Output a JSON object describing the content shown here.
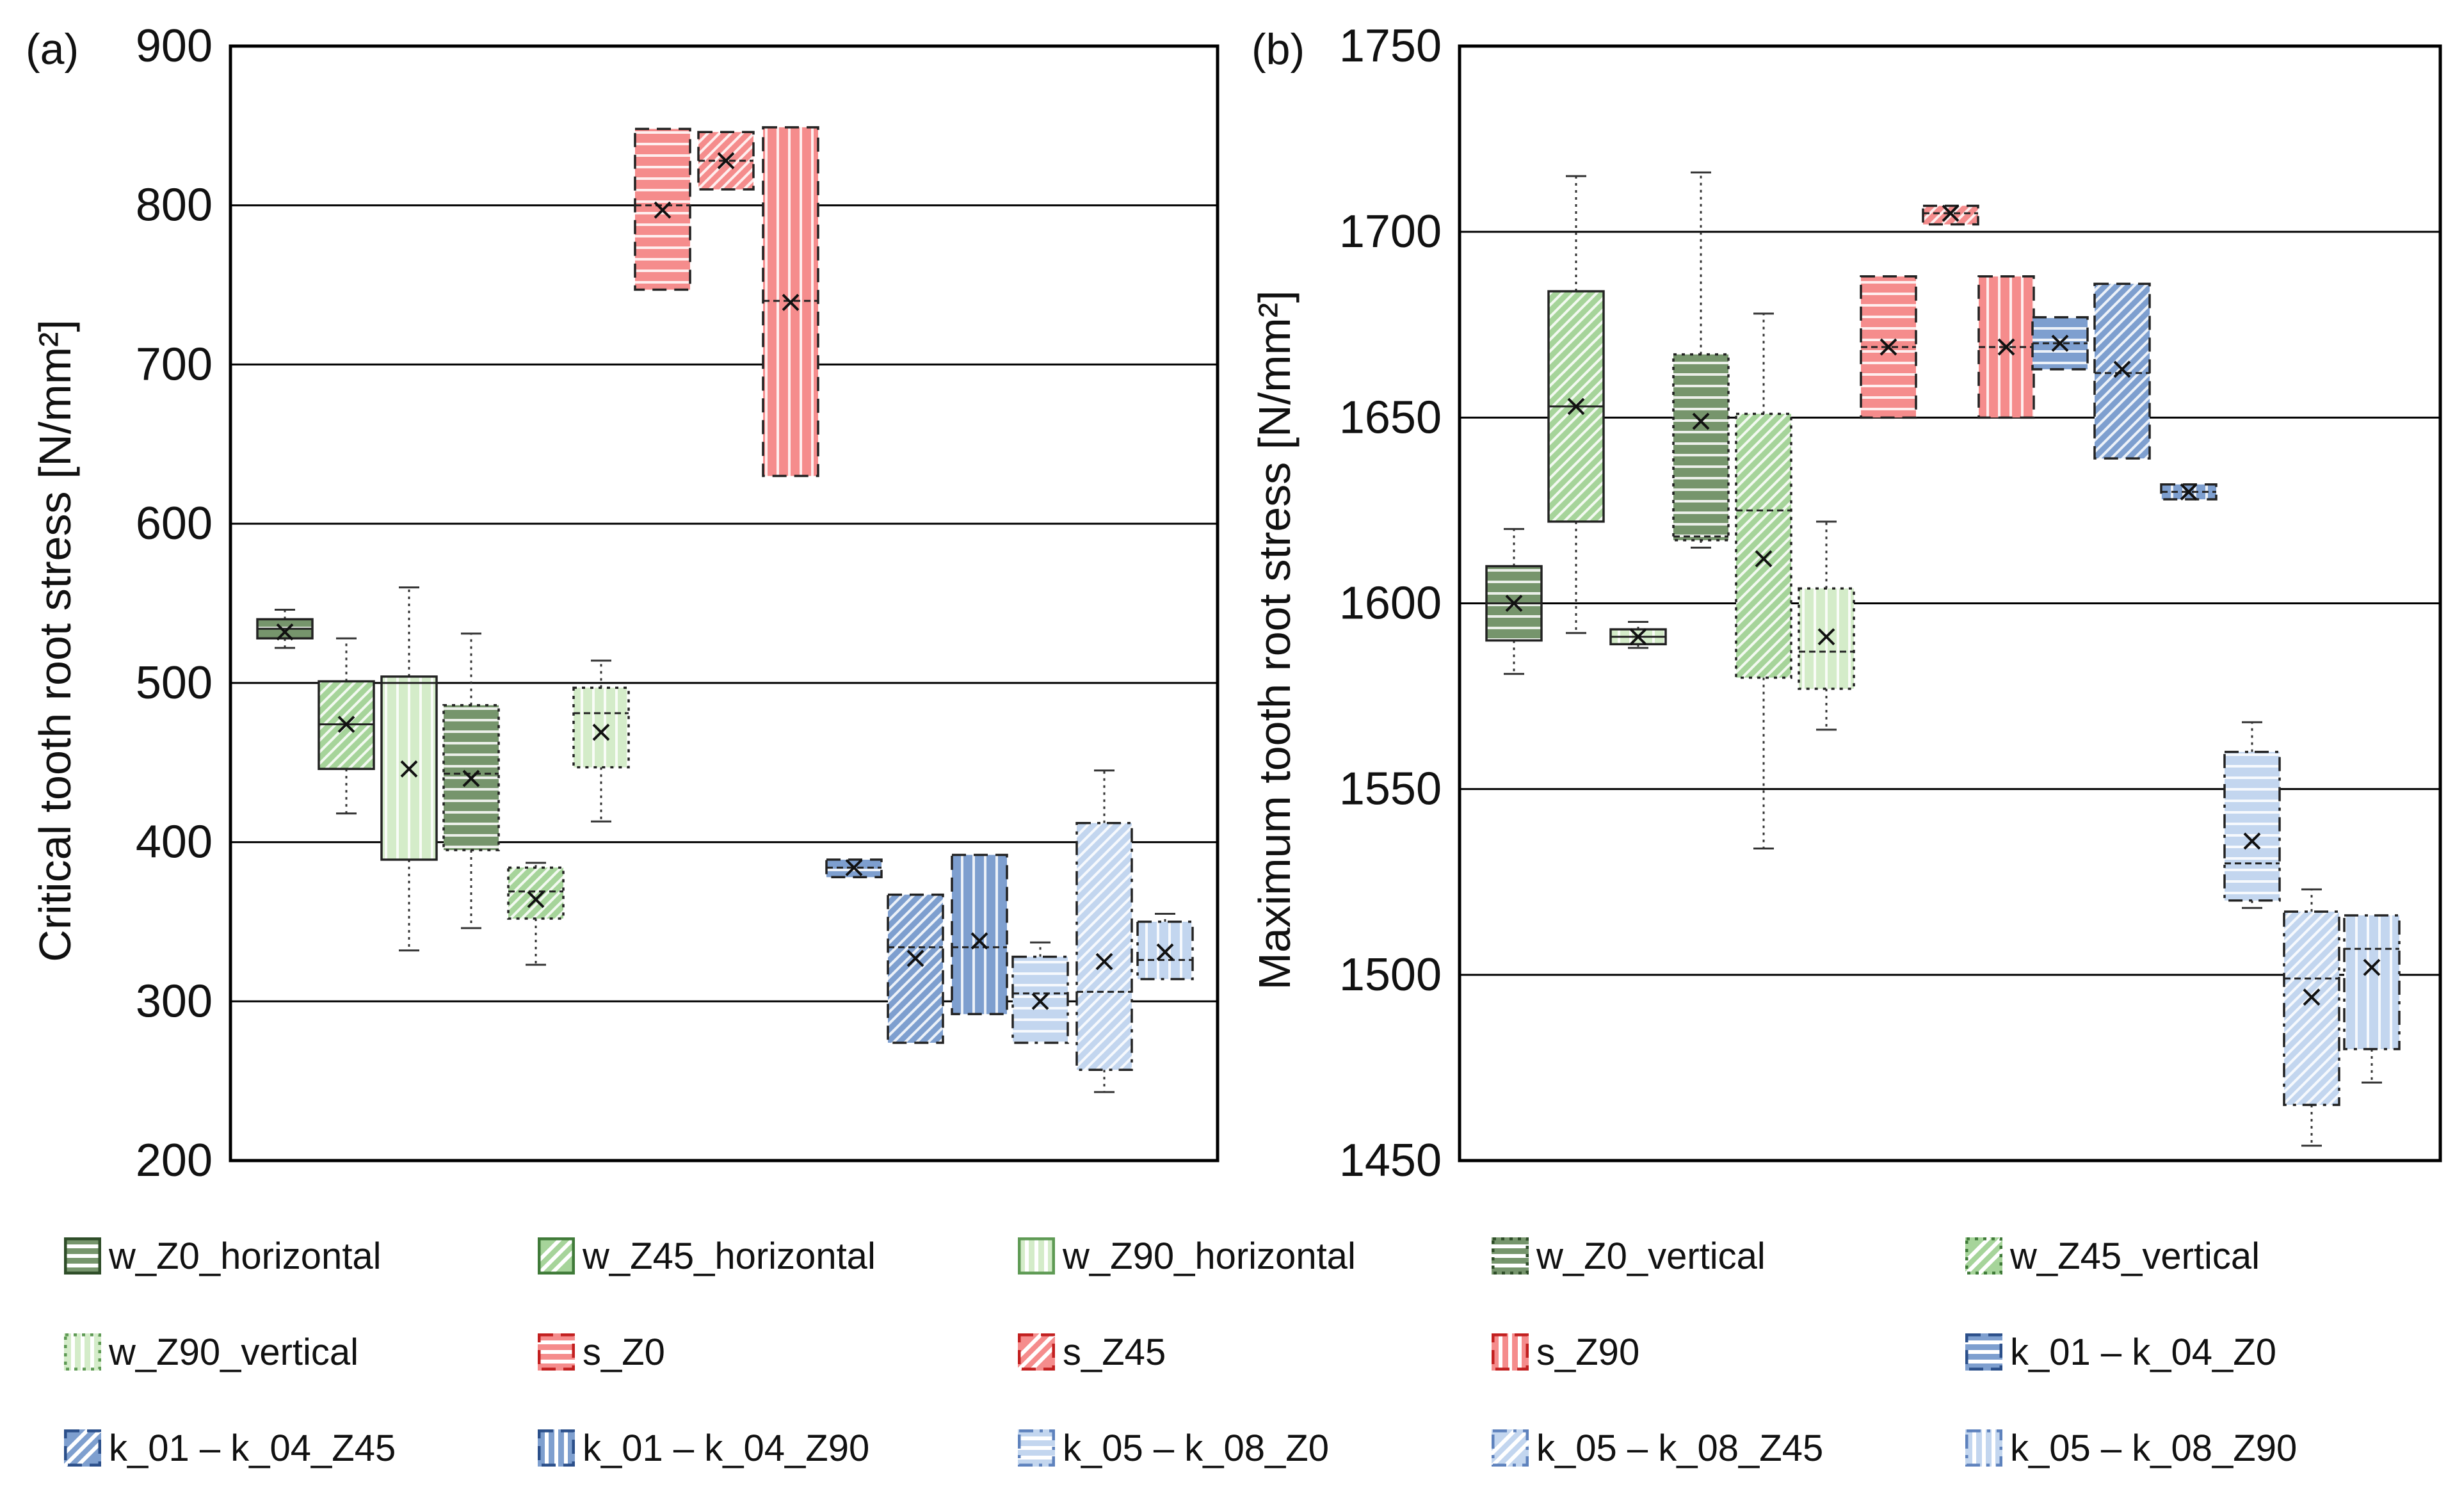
{
  "panels": [
    {
      "tag": "(a)",
      "ylabel": "Critical tooth root stress [N/mm²]",
      "ylim": [
        200,
        900
      ],
      "yticks": [
        200,
        300,
        400,
        500,
        600,
        700,
        800,
        900
      ]
    },
    {
      "tag": "(b)",
      "ylabel": "Maximum tooth root stress [N/mm²]",
      "ylim": [
        1450,
        1750
      ],
      "yticks": [
        1450,
        1500,
        1550,
        1600,
        1650,
        1700,
        1750
      ]
    }
  ],
  "chart_data": [
    {
      "type": "box",
      "title": "(a)",
      "xlabel": "",
      "ylabel": "Critical tooth root stress [N/mm²]",
      "ylim": [
        200,
        900
      ],
      "grid": "horizontal",
      "boxes": [
        {
          "series": "w_Z0_horizontal",
          "min": 522,
          "q1": 528,
          "median": 534,
          "mean": 532,
          "q3": 540,
          "max": 546
        },
        {
          "series": "w_Z45_horizontal",
          "min": 418,
          "q1": 446,
          "median": 474,
          "mean": 474,
          "q3": 501,
          "max": 528
        },
        {
          "series": "w_Z90_horizontal",
          "min": 332,
          "q1": 389,
          "median": 500,
          "mean": 446,
          "q3": 504,
          "max": 560
        },
        {
          "series": "w_Z0_vertical",
          "min": 346,
          "q1": 395,
          "median": 443,
          "mean": 440,
          "q3": 486,
          "max": 531
        },
        {
          "series": "w_Z45_vertical",
          "min": 323,
          "q1": 352,
          "median": 369,
          "mean": 364,
          "q3": 384,
          "max": 387
        },
        {
          "series": "w_Z90_vertical",
          "min": 413,
          "q1": 447,
          "median": 481,
          "mean": 469,
          "q3": 497,
          "max": 514
        },
        {
          "series": "s_Z0",
          "min": 747,
          "q1": 747,
          "median": 800,
          "mean": 797,
          "q3": 848,
          "max": 848
        },
        {
          "series": "s_Z45",
          "min": 810,
          "q1": 810,
          "median": 828,
          "mean": 828,
          "q3": 846,
          "max": 846
        },
        {
          "series": "s_Z90",
          "min": 630,
          "q1": 630,
          "median": 740,
          "mean": 739,
          "q3": 849,
          "max": 849
        },
        {
          "series": "k_01 – k_04_Z0",
          "min": 378,
          "q1": 378,
          "median": 384,
          "mean": 384,
          "q3": 389,
          "max": 389
        },
        {
          "series": "k_01 – k_04_Z45",
          "min": 274,
          "q1": 274,
          "median": 334,
          "mean": 327,
          "q3": 367,
          "max": 367
        },
        {
          "series": "k_01 – k_04_Z90",
          "min": 292,
          "q1": 292,
          "median": 334,
          "mean": 338,
          "q3": 392,
          "max": 392
        },
        {
          "series": "k_05 – k_08_Z0",
          "min": 274,
          "q1": 274,
          "median": 305,
          "mean": 300,
          "q3": 328,
          "max": 337
        },
        {
          "series": "k_05 – k_08_Z45",
          "min": 243,
          "q1": 257,
          "median": 306,
          "mean": 325,
          "q3": 412,
          "max": 445
        },
        {
          "series": "k_05 – k_08_Z90",
          "min": 314,
          "q1": 314,
          "median": 326,
          "mean": 331,
          "q3": 350,
          "max": 355
        }
      ]
    },
    {
      "type": "box",
      "title": "(b)",
      "xlabel": "",
      "ylabel": "Maximum tooth root stress [N/mm²]",
      "ylim": [
        1450,
        1750
      ],
      "grid": "horizontal",
      "boxes": [
        {
          "series": "w_Z0_horizontal",
          "min": 1581,
          "q1": 1590,
          "median": 1600,
          "mean": 1600,
          "q3": 1610,
          "max": 1620
        },
        {
          "series": "w_Z45_horizontal",
          "min": 1592,
          "q1": 1622,
          "median": 1653,
          "mean": 1653,
          "q3": 1684,
          "max": 1715
        },
        {
          "series": "w_Z90_horizontal",
          "min": 1588,
          "q1": 1589,
          "median": 1591,
          "mean": 1591,
          "q3": 1593,
          "max": 1595
        },
        {
          "series": "w_Z0_vertical",
          "min": 1615,
          "q1": 1617,
          "median": 1618,
          "mean": 1649,
          "q3": 1667,
          "max": 1716
        },
        {
          "series": "w_Z45_vertical",
          "min": 1534,
          "q1": 1580,
          "median": 1625,
          "mean": 1612,
          "q3": 1651,
          "max": 1678
        },
        {
          "series": "w_Z90_vertical",
          "min": 1566,
          "q1": 1577,
          "median": 1587,
          "mean": 1591,
          "q3": 1604,
          "max": 1622
        },
        {
          "series": "s_Z0",
          "min": 1650,
          "q1": 1650,
          "median": 1669,
          "mean": 1669,
          "q3": 1688,
          "max": 1688
        },
        {
          "series": "s_Z45",
          "min": 1702,
          "q1": 1702,
          "median": 1705,
          "mean": 1705,
          "q3": 1707,
          "max": 1707
        },
        {
          "series": "s_Z90",
          "min": 1650,
          "q1": 1650,
          "median": 1669,
          "mean": 1669,
          "q3": 1688,
          "max": 1688
        },
        {
          "series": "k_01 – k_04_Z0",
          "min": 1663,
          "q1": 1663,
          "median": 1670,
          "mean": 1670,
          "q3": 1677,
          "max": 1677
        },
        {
          "series": "k_01 – k_04_Z45",
          "min": 1639,
          "q1": 1639,
          "median": 1662,
          "mean": 1663,
          "q3": 1686,
          "max": 1686
        },
        {
          "series": "k_01 – k_04_Z90",
          "min": 1628,
          "q1": 1628,
          "median": 1630,
          "mean": 1630,
          "q3": 1632,
          "max": 1632
        },
        {
          "series": "k_05 – k_08_Z0",
          "min": 1518,
          "q1": 1520,
          "median": 1530,
          "mean": 1536,
          "q3": 1560,
          "max": 1568
        },
        {
          "series": "k_05 – k_08_Z45",
          "min": 1454,
          "q1": 1465,
          "median": 1499,
          "mean": 1494,
          "q3": 1517,
          "max": 1523
        },
        {
          "series": "k_05 – k_08_Z90",
          "min": 1471,
          "q1": 1480,
          "median": 1507,
          "mean": 1502,
          "q3": 1516,
          "max": 1516
        }
      ]
    }
  ],
  "legend": [
    {
      "label": "w_Z0_horizontal",
      "pattern": "hline",
      "style": "solid",
      "color": "#76956c",
      "stroke": "#2e4d28"
    },
    {
      "label": "w_Z45_horizontal",
      "pattern": "diag",
      "style": "solid",
      "color": "#a6d49a",
      "stroke": "#3f7a38"
    },
    {
      "label": "w_Z90_horizontal",
      "pattern": "vline",
      "style": "solid",
      "color": "#d4ecc9",
      "stroke": "#5e9a54"
    },
    {
      "label": "w_Z0_vertical",
      "pattern": "hline",
      "style": "dotted",
      "color": "#76956c",
      "stroke": "#2e4d28"
    },
    {
      "label": "w_Z45_vertical",
      "pattern": "diag",
      "style": "dotted",
      "color": "#a6d49a",
      "stroke": "#3f7a38"
    },
    {
      "label": "w_Z90_vertical",
      "pattern": "vline",
      "style": "dotted",
      "color": "#d4ecc9",
      "stroke": "#5e9a54"
    },
    {
      "label": "s_Z0",
      "pattern": "hline",
      "style": "dashed",
      "color": "#f58c8c",
      "stroke": "#c21f1f"
    },
    {
      "label": "s_Z45",
      "pattern": "diag",
      "style": "dashed",
      "color": "#f58c8c",
      "stroke": "#c21f1f"
    },
    {
      "label": "s_Z90",
      "pattern": "vline",
      "style": "dashed",
      "color": "#f58c8c",
      "stroke": "#c21f1f"
    },
    {
      "label": "k_01 – k_04_Z0",
      "pattern": "hline",
      "style": "dashed",
      "color": "#7e9fcf",
      "stroke": "#2b4f8a"
    },
    {
      "label": "k_01 – k_04_Z45",
      "pattern": "diag",
      "style": "dashed",
      "color": "#7e9fcf",
      "stroke": "#2b4f8a"
    },
    {
      "label": "k_01 – k_04_Z90",
      "pattern": "vline",
      "style": "dashed",
      "color": "#7e9fcf",
      "stroke": "#2b4f8a"
    },
    {
      "label": "k_05 – k_08_Z0",
      "pattern": "hline",
      "style": "dashdot",
      "color": "#c3d6ef",
      "stroke": "#5e82bd"
    },
    {
      "label": "k_05 – k_08_Z45",
      "pattern": "diag",
      "style": "dashdot",
      "color": "#c3d6ef",
      "stroke": "#5e82bd"
    },
    {
      "label": "k_05 – k_08_Z90",
      "pattern": "vline",
      "style": "dashdot",
      "color": "#c3d6ef",
      "stroke": "#5e82bd"
    }
  ]
}
